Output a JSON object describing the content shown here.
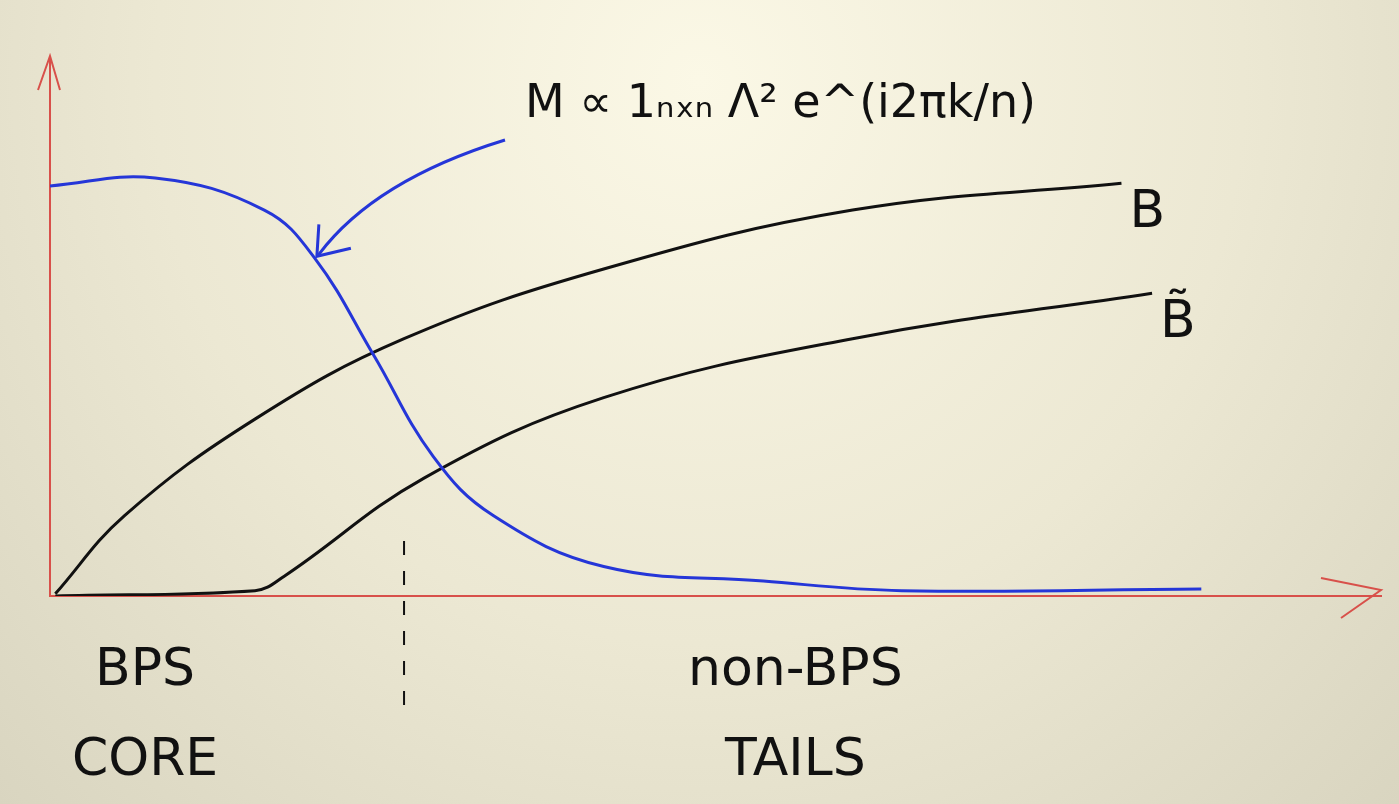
{
  "chart_data": {
    "type": "line",
    "xlim": [
      0,
      10
    ],
    "ylim": [
      0,
      10
    ],
    "grid": false,
    "tick_labels": false,
    "series": [
      {
        "name": "M ∝ 1ₙₓₙ Λ² e^(i2πk/n)",
        "color": "#2536d8",
        "x": [
          0,
          0.79,
          1.61,
          1.99,
          2.43,
          2.88,
          3.33,
          4.16,
          5.36,
          6.4,
          8.65
        ],
        "values": [
          7.65,
          7.8,
          7.2,
          6.3,
          4.5,
          2.6,
          1.5,
          0.55,
          0.28,
          0.1,
          0.13
        ]
      },
      {
        "name": "B",
        "color": "#111111",
        "x": [
          0.04,
          0.56,
          1.54,
          2.66,
          4.16,
          6.03,
          8.05
        ],
        "values": [
          0.04,
          1.5,
          3.3,
          4.8,
          6.1,
          7.2,
          7.7
        ]
      },
      {
        "name": "B̃",
        "color": "#111111",
        "x": [
          0.04,
          1.54,
          1.76,
          2.81,
          4.16,
          6.03,
          8.28
        ],
        "values": [
          0,
          0.1,
          0.37,
          2.2,
          3.7,
          4.8,
          5.65
        ]
      }
    ],
    "annotations": [
      {
        "text": "M ∝ 1ₙₓₙ Λ² e^(i2πk/n)",
        "x": 1.99,
        "y": 6.3
      }
    ],
    "vlines": [
      2.66
    ],
    "regions": [
      "BPS CORE",
      "non-BPS TAILS"
    ]
  }
}
